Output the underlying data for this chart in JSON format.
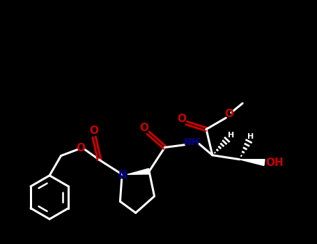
{
  "bg_color": "#000000",
  "bond_color": "#1a1a1a",
  "o_color": "#cc0000",
  "n_color": "#000099",
  "line_width": 2.2,
  "figsize": [
    4.55,
    3.5
  ],
  "dpi": 100,
  "xlim": [
    -2.8,
    3.2
  ],
  "ylim": [
    -2.5,
    2.2
  ]
}
